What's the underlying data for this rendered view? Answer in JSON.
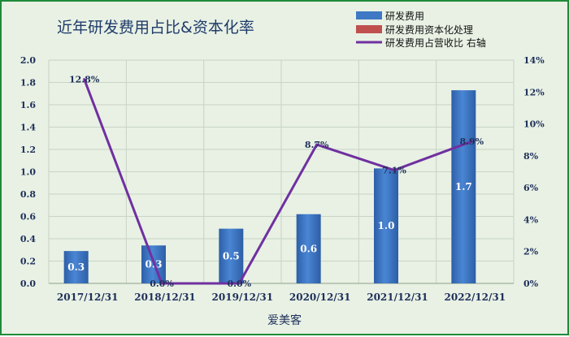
{
  "chart_data": {
    "type": "bar",
    "title": "近年研发费用占比&资本化率",
    "xlabel": "爱美客",
    "categories": [
      "2017/12/31",
      "2018/12/31",
      "2019/12/31",
      "2020/12/31",
      "2021/12/31",
      "2022/12/31"
    ],
    "series": [
      {
        "name": "研发费用",
        "kind": "bar",
        "axis": "left",
        "values": [
          0.29,
          0.34,
          0.49,
          0.62,
          1.03,
          1.73
        ],
        "labels": [
          "0.3",
          "0.3",
          "0.5",
          "0.6",
          "1.0",
          "1.7"
        ],
        "color": "#3f78c4"
      },
      {
        "name": "研发费用资本化处理",
        "kind": "bar",
        "axis": "left",
        "values": [
          0,
          0,
          0,
          0,
          0,
          0
        ],
        "color": "#c0504d"
      },
      {
        "name": "研发费用占营收比 右轴",
        "kind": "line",
        "axis": "right",
        "values": [
          12.8,
          0.0,
          0.0,
          8.7,
          7.1,
          8.9
        ],
        "labels": [
          "12.8%",
          "0.0%",
          "0.0%",
          "8.7%",
          "7.1%",
          "8.9%"
        ],
        "color": "#7030a0"
      }
    ],
    "ylim": [
      0,
      2.0
    ],
    "yticks": [
      "0.0",
      "0.2",
      "0.4",
      "0.6",
      "0.8",
      "1.0",
      "1.2",
      "1.4",
      "1.6",
      "1.8",
      "2.0"
    ],
    "y2lim": [
      0,
      14
    ],
    "y2ticks": [
      "0%",
      "2%",
      "4%",
      "6%",
      "8%",
      "10%",
      "12%",
      "14%"
    ],
    "grid": true,
    "legend": "top-right"
  }
}
